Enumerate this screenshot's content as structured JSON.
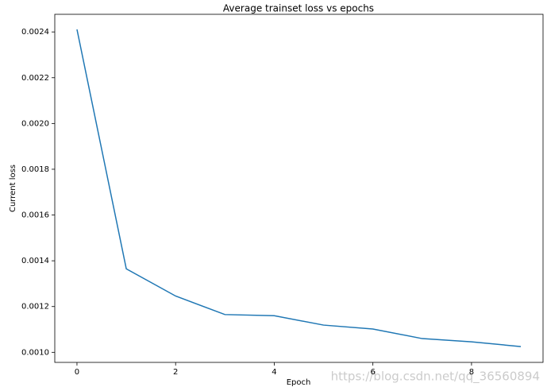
{
  "chart_data": {
    "type": "line",
    "title": "Average trainset loss vs epochs",
    "x_label": "Epoch",
    "y_label": "Current loss",
    "watermark": "https://blog.csdn.net/qq_36560894",
    "x": [
      0,
      1,
      2,
      3,
      4,
      5,
      6,
      7,
      8,
      9
    ],
    "series": [
      {
        "name": "loss",
        "color": "#1f77b4",
        "values": [
          0.002411,
          0.001365,
          0.001246,
          0.001165,
          0.00116,
          0.001119,
          0.001102,
          0.00106,
          0.001046,
          0.001025
        ]
      }
    ],
    "xlim": [
      -0.45,
      9.45
    ],
    "xticks": [
      0,
      2,
      4,
      6,
      8
    ],
    "ylim": [
      0.000956,
      0.002477
    ],
    "yticks": [
      {
        "value": 0.001,
        "label": "0.0010"
      },
      {
        "value": 0.0012,
        "label": "0.0012"
      },
      {
        "value": 0.0014,
        "label": "0.0014"
      },
      {
        "value": 0.0016,
        "label": "0.0016"
      },
      {
        "value": 0.0018,
        "label": "0.0018"
      },
      {
        "value": 0.002,
        "label": "0.0020"
      },
      {
        "value": 0.0022,
        "label": "0.0022"
      },
      {
        "value": 0.0024,
        "label": "0.0024"
      }
    ],
    "grid": false
  }
}
